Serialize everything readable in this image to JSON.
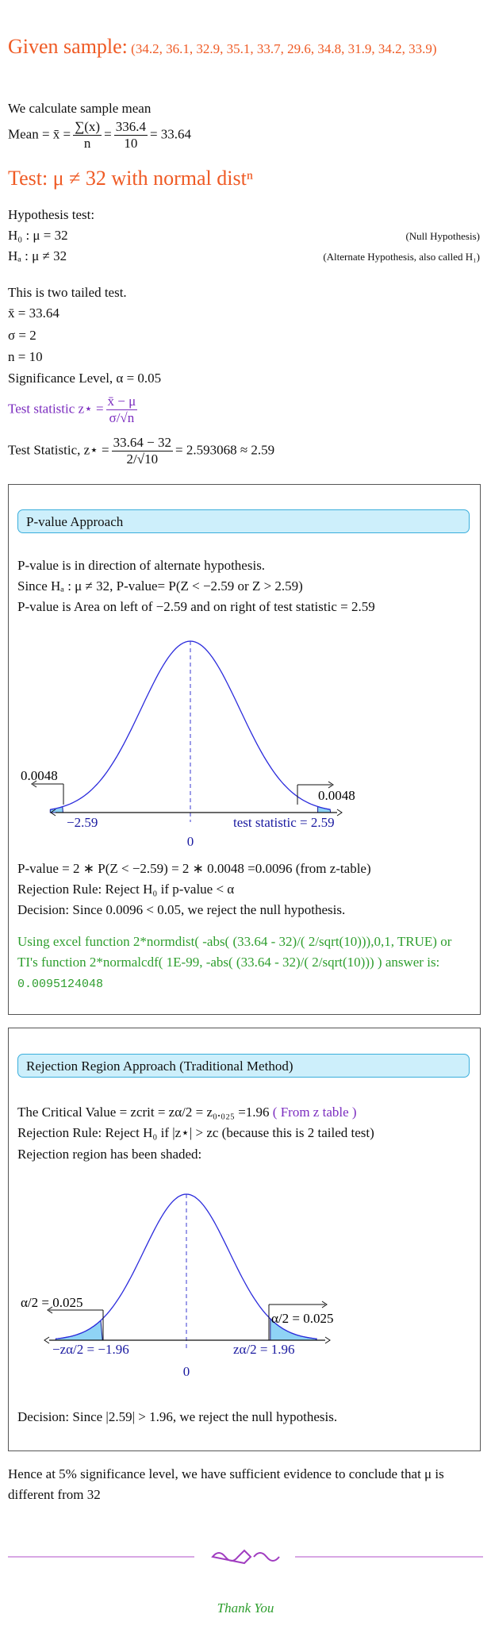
{
  "sample": {
    "label": "Given sample:",
    "data": "(34.2, 36.1, 32.9, 35.1, 33.7, 29.6, 34.8, 31.9, 34.2, 33.9)"
  },
  "mean": {
    "intro": "We calculate sample mean",
    "lhs": "Mean = x̄ =",
    "num1": "∑(x)",
    "den1": "n",
    "eq": "=",
    "num2": "336.4",
    "den2": "10",
    "result": "= 33.64"
  },
  "test_heading": "Test: μ ≠ 32 with normal distⁿ",
  "hypothesis": {
    "title": "Hypothesis test:",
    "h0": "H₀ : μ = 32",
    "h0_note": "(Null Hypothesis)",
    "ha": "Hₐ : μ ≠ 32",
    "ha_note": "(Alternate Hypothesis, also called H₁)"
  },
  "given": {
    "tails": "This is two tailed test.",
    "xbar": "x̄ = 33.64",
    "sigma": "σ = 2",
    "n": "n = 10",
    "alpha": "Significance Level, α = 0.05"
  },
  "statistic": {
    "formula_lhs": "Test statistic z⋆ =",
    "formula_num": "x̄ − μ",
    "formula_den": "σ/√n",
    "value_lhs": "Test Statistic, z⋆ =",
    "value_num": "33.64 − 32",
    "value_den": "2/√10",
    "value_result": "= 2.593068 ≈ 2.59"
  },
  "pvalue": {
    "heading": "P-value Approach",
    "lines": [
      "P-value is in direction of alternate hypothesis.",
      "Since Hₐ : μ ≠ 32, P-value= P(Z < −2.59 or Z > 2.59)",
      "P-value is Area on left of −2.59 and on right of test statistic = 2.59"
    ],
    "figure": {
      "left_area": "0.0048",
      "right_area": "0.0048",
      "left_label": "−2.59",
      "right_label": "test statistic = 2.59",
      "center": "0"
    },
    "result": [
      "P-value = 2 ∗ P(Z < −2.59) = 2 ∗ 0.0048 =0.0096 (from z-table)",
      "Rejection Rule: Reject H₀ if p-value < α",
      "Decision: Since 0.0096 < 0.05, we reject the null hypothesis."
    ],
    "excel": {
      "text": "Using excel function 2*normdist( -abs( (33.64 - 32)/( 2/sqrt(10))),0,1, TRUE) or TI's function 2*normalcdf( 1E-99, -abs( (33.64 - 32)/( 2/sqrt(10))) ) answer is:",
      "answer": "0.0095124048"
    }
  },
  "rejection": {
    "heading": "Rejection Region Approach (Traditional Method)",
    "critical": "The Critical Value = zcrit = zα/2 = z₀.₀₂₅ =1.96",
    "critical_note": "( From z table )",
    "rule": "Rejection Rule: Reject H₀ if |z⋆| > zc (because this is 2 tailed test)",
    "shaded": "Rejection region has been shaded:",
    "figure": {
      "left_area": "α/2 = 0.025",
      "right_area": "α/2 = 0.025",
      "left_label": "−zα/2 = −1.96",
      "right_label": "zα/2 = 1.96",
      "center": "0"
    },
    "decision": "Decision: Since |2.59| > 1.96, we reject the null hypothesis."
  },
  "conclusion": "Hence at 5% significance level, we have sufficient evidence to conclude that μ is different from 32",
  "closing": "Thank You"
}
